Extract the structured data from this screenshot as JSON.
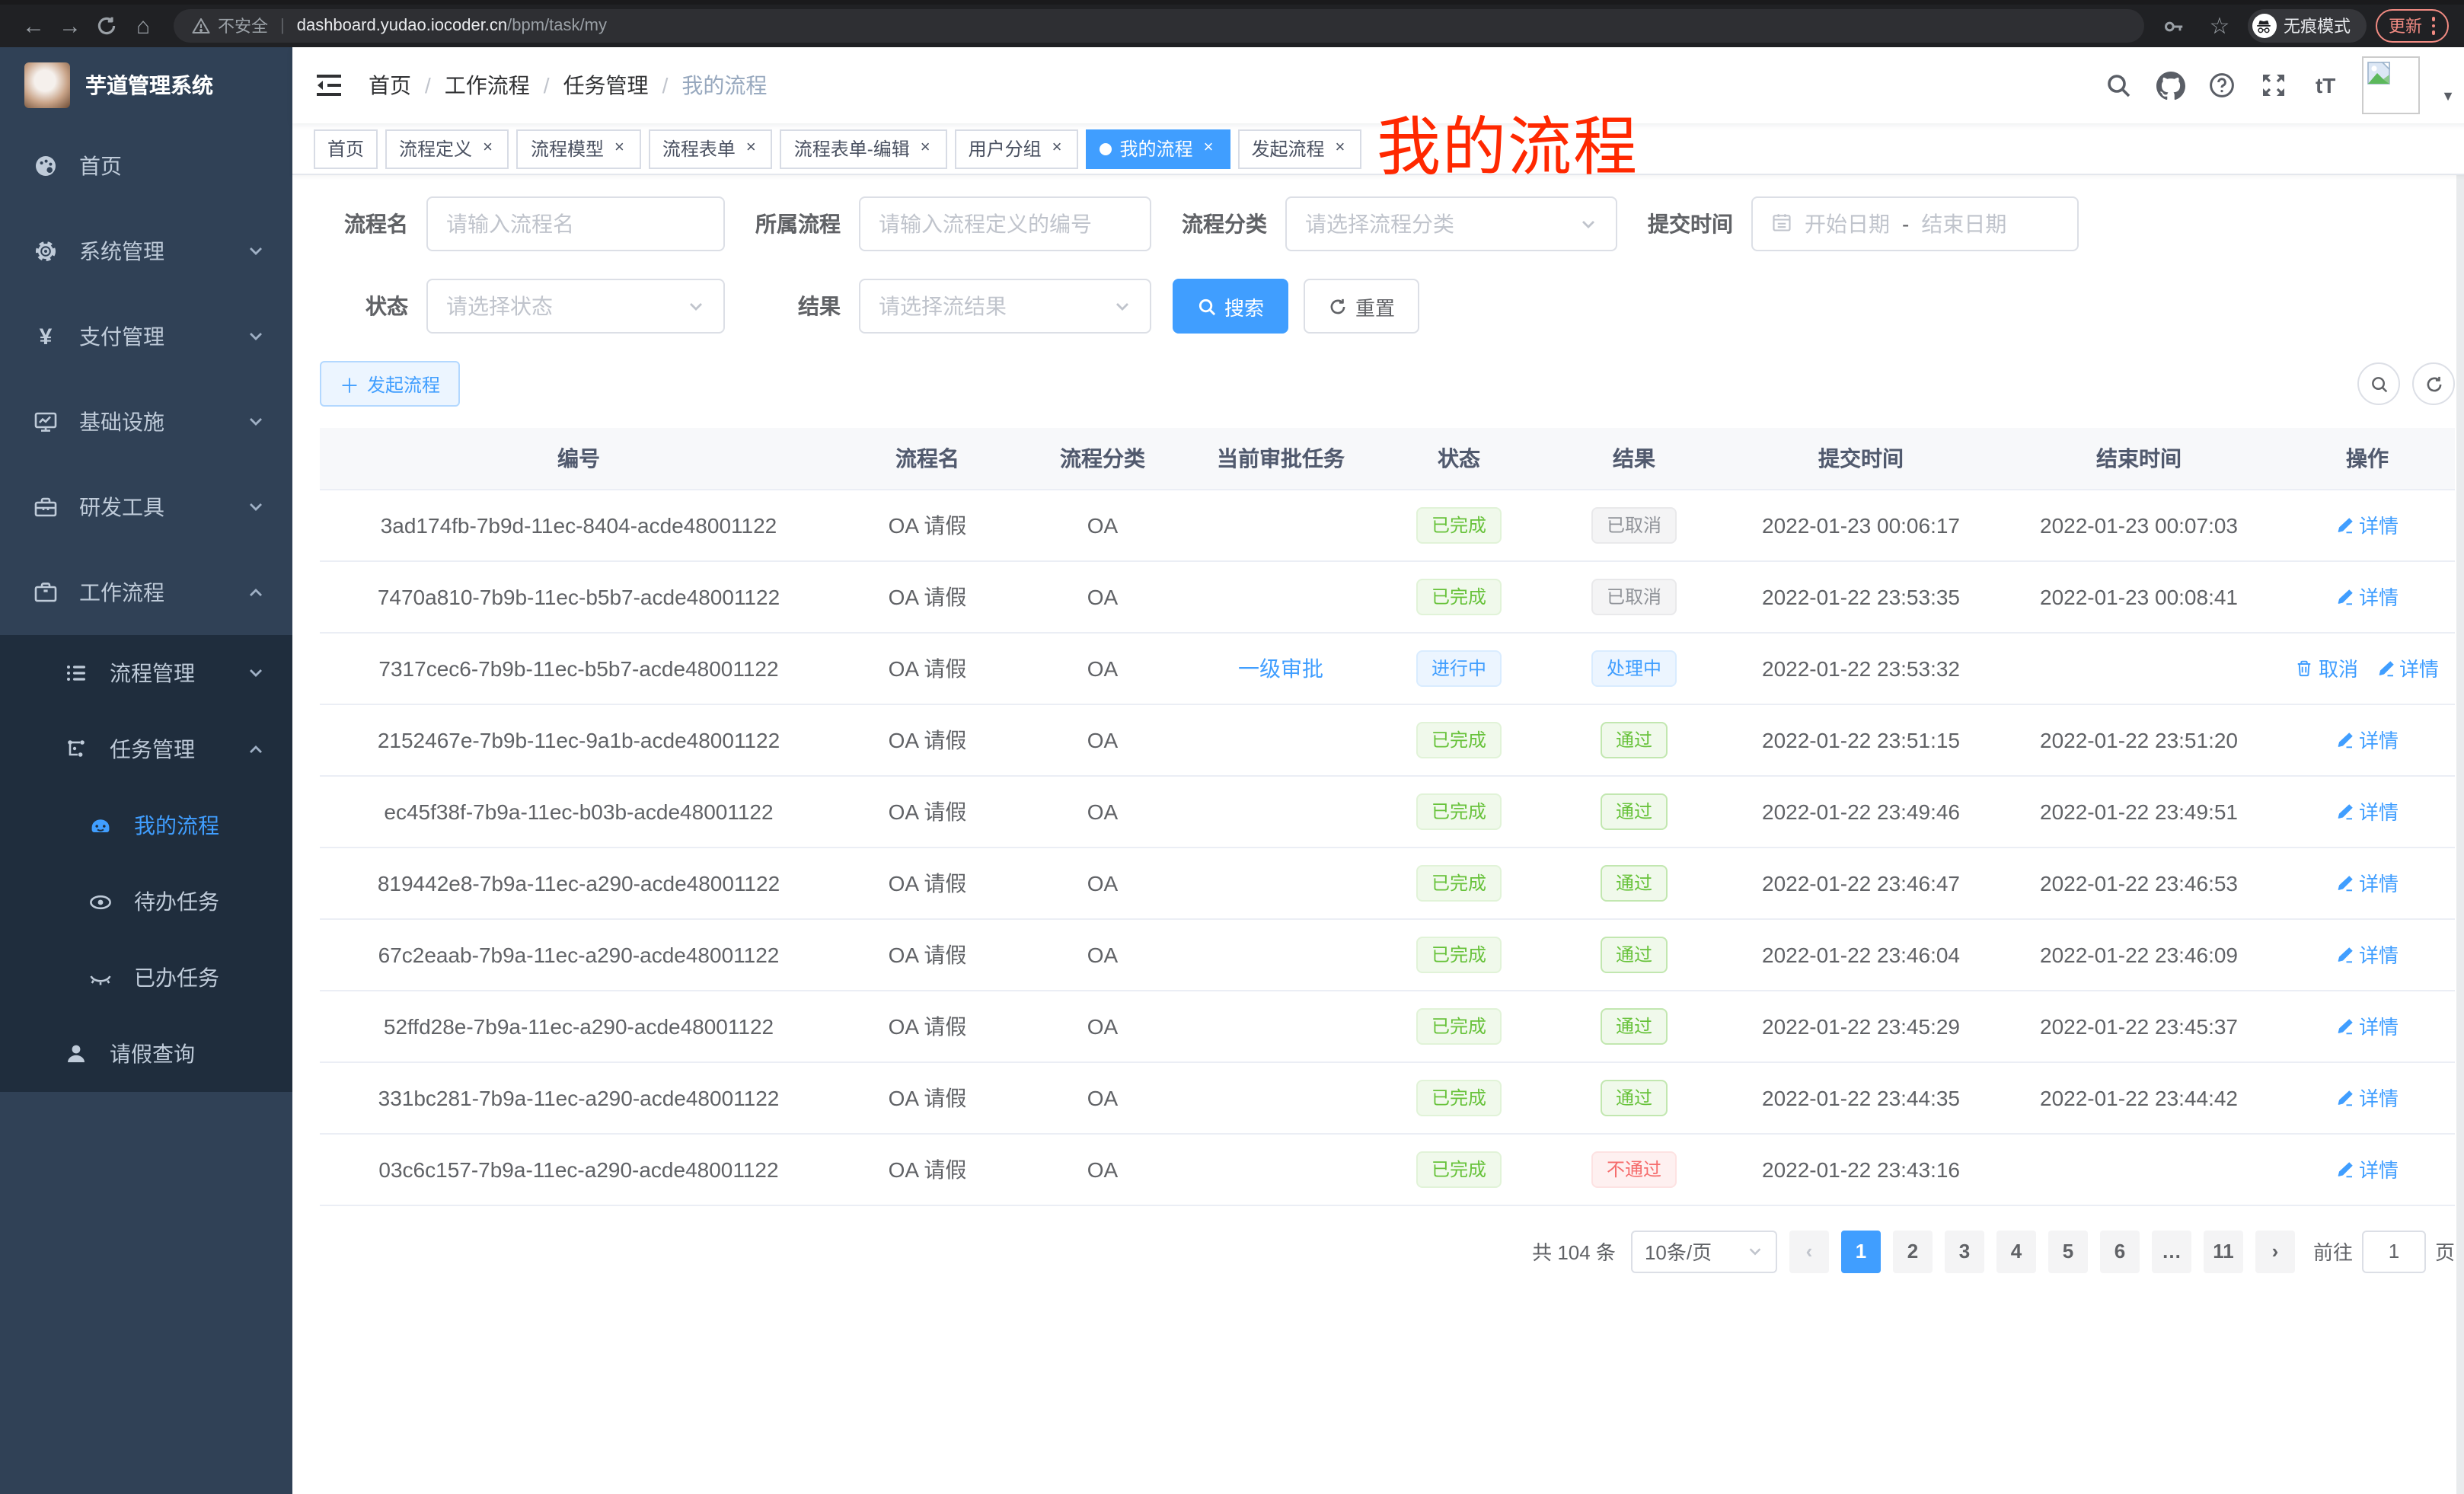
{
  "browser": {
    "security_text": "不安全",
    "url_host": "dashboard.yudao.iocoder.cn",
    "url_path": "/bpm/task/my",
    "incognito_label": "无痕模式",
    "update_label": "更新"
  },
  "sidebar": {
    "app_title": "芋道管理系统",
    "menu": [
      {
        "label": "首页",
        "icon": "dashboard-icon",
        "level": 1,
        "dark": false,
        "active": false,
        "arrow": ""
      },
      {
        "label": "系统管理",
        "icon": "gear-icon",
        "level": 1,
        "dark": false,
        "active": false,
        "arrow": "down"
      },
      {
        "label": "支付管理",
        "icon": "yen-icon",
        "level": 1,
        "dark": false,
        "active": false,
        "arrow": "down"
      },
      {
        "label": "基础设施",
        "icon": "monitor-icon",
        "level": 1,
        "dark": false,
        "active": false,
        "arrow": "down"
      },
      {
        "label": "研发工具",
        "icon": "toolbox-icon",
        "level": 1,
        "dark": false,
        "active": false,
        "arrow": "down"
      },
      {
        "label": "工作流程",
        "icon": "suitcase-icon",
        "level": 1,
        "dark": false,
        "active": false,
        "arrow": "up"
      },
      {
        "label": "流程管理",
        "icon": "list-icon",
        "level": 2,
        "dark": true,
        "active": false,
        "arrow": "down"
      },
      {
        "label": "任务管理",
        "icon": "tree-icon",
        "level": 2,
        "dark": true,
        "active": false,
        "arrow": "up"
      },
      {
        "label": "我的流程",
        "icon": "robot-icon",
        "level": 3,
        "dark": true,
        "active": true,
        "arrow": ""
      },
      {
        "label": "待办任务",
        "icon": "eye-icon",
        "level": 3,
        "dark": true,
        "active": false,
        "arrow": ""
      },
      {
        "label": "已办任务",
        "icon": "eye-closed-icon",
        "level": 3,
        "dark": true,
        "active": false,
        "arrow": ""
      },
      {
        "label": "请假查询",
        "icon": "user-icon",
        "level": 2,
        "dark": true,
        "active": false,
        "arrow": ""
      }
    ]
  },
  "breadcrumb": [
    "首页",
    "工作流程",
    "任务管理",
    "我的流程"
  ],
  "annotation": "我的流程",
  "tabs": [
    {
      "label": "首页",
      "closable": false,
      "active": false
    },
    {
      "label": "流程定义",
      "closable": true,
      "active": false
    },
    {
      "label": "流程模型",
      "closable": true,
      "active": false
    },
    {
      "label": "流程表单",
      "closable": true,
      "active": false
    },
    {
      "label": "流程表单-编辑",
      "closable": true,
      "active": false
    },
    {
      "label": "用户分组",
      "closable": true,
      "active": false
    },
    {
      "label": "我的流程",
      "closable": true,
      "active": true
    },
    {
      "label": "发起流程",
      "closable": true,
      "active": false
    }
  ],
  "filters": {
    "name_label": "流程名",
    "name_placeholder": "请输入流程名",
    "def_label": "所属流程",
    "def_placeholder": "请输入流程定义的编号",
    "category_label": "流程分类",
    "category_placeholder": "请选择流程分类",
    "time_label": "提交时间",
    "time_start_placeholder": "开始日期",
    "time_separator": "-",
    "time_end_placeholder": "结束日期",
    "status_label": "状态",
    "status_placeholder": "请选择状态",
    "result_label": "结果",
    "result_placeholder": "请选择流结果",
    "search_label": "搜索",
    "reset_label": "重置"
  },
  "toolbar": {
    "create_label": "发起流程"
  },
  "table": {
    "headers": [
      "编号",
      "流程名",
      "流程分类",
      "当前审批任务",
      "状态",
      "结果",
      "提交时间",
      "结束时间",
      "操作"
    ],
    "rows": [
      {
        "id": "3ad174fb-7b9d-11ec-8404-acde48001122",
        "name": "OA 请假",
        "category": "OA",
        "task": "",
        "status": "已完成",
        "status_type": "t-success",
        "result": "已取消",
        "result_type": "t-info",
        "submit_time": "2022-01-23 00:06:17",
        "end_time": "2022-01-23 00:07:03",
        "actions": [
          "详情"
        ]
      },
      {
        "id": "7470a810-7b9b-11ec-b5b7-acde48001122",
        "name": "OA 请假",
        "category": "OA",
        "task": "",
        "status": "已完成",
        "status_type": "t-success",
        "result": "已取消",
        "result_type": "t-info",
        "submit_time": "2022-01-22 23:53:35",
        "end_time": "2022-01-23 00:08:41",
        "actions": [
          "详情"
        ]
      },
      {
        "id": "7317cec6-7b9b-11ec-b5b7-acde48001122",
        "name": "OA 请假",
        "category": "OA",
        "task": "一级审批",
        "status": "进行中",
        "status_type": "t-primary",
        "result": "处理中",
        "result_type": "t-primary",
        "submit_time": "2022-01-22 23:53:32",
        "end_time": "",
        "actions": [
          "取消",
          "详情"
        ]
      },
      {
        "id": "2152467e-7b9b-11ec-9a1b-acde48001122",
        "name": "OA 请假",
        "category": "OA",
        "task": "",
        "status": "已完成",
        "status_type": "t-success",
        "result": "通过",
        "result_type": "t-success-b",
        "submit_time": "2022-01-22 23:51:15",
        "end_time": "2022-01-22 23:51:20",
        "actions": [
          "详情"
        ]
      },
      {
        "id": "ec45f38f-7b9a-11ec-b03b-acde48001122",
        "name": "OA 请假",
        "category": "OA",
        "task": "",
        "status": "已完成",
        "status_type": "t-success",
        "result": "通过",
        "result_type": "t-success-b",
        "submit_time": "2022-01-22 23:49:46",
        "end_time": "2022-01-22 23:49:51",
        "actions": [
          "详情"
        ]
      },
      {
        "id": "819442e8-7b9a-11ec-a290-acde48001122",
        "name": "OA 请假",
        "category": "OA",
        "task": "",
        "status": "已完成",
        "status_type": "t-success",
        "result": "通过",
        "result_type": "t-success-b",
        "submit_time": "2022-01-22 23:46:47",
        "end_time": "2022-01-22 23:46:53",
        "actions": [
          "详情"
        ]
      },
      {
        "id": "67c2eaab-7b9a-11ec-a290-acde48001122",
        "name": "OA 请假",
        "category": "OA",
        "task": "",
        "status": "已完成",
        "status_type": "t-success",
        "result": "通过",
        "result_type": "t-success-b",
        "submit_time": "2022-01-22 23:46:04",
        "end_time": "2022-01-22 23:46:09",
        "actions": [
          "详情"
        ]
      },
      {
        "id": "52ffd28e-7b9a-11ec-a290-acde48001122",
        "name": "OA 请假",
        "category": "OA",
        "task": "",
        "status": "已完成",
        "status_type": "t-success",
        "result": "通过",
        "result_type": "t-success-b",
        "submit_time": "2022-01-22 23:45:29",
        "end_time": "2022-01-22 23:45:37",
        "actions": [
          "详情"
        ]
      },
      {
        "id": "331bc281-7b9a-11ec-a290-acde48001122",
        "name": "OA 请假",
        "category": "OA",
        "task": "",
        "status": "已完成",
        "status_type": "t-success",
        "result": "通过",
        "result_type": "t-success-b",
        "submit_time": "2022-01-22 23:44:35",
        "end_time": "2022-01-22 23:44:42",
        "actions": [
          "详情"
        ]
      },
      {
        "id": "03c6c157-7b9a-11ec-a290-acde48001122",
        "name": "OA 请假",
        "category": "OA",
        "task": "",
        "status": "已完成",
        "status_type": "t-success",
        "result": "不通过",
        "result_type": "t-danger",
        "submit_time": "2022-01-22 23:43:16",
        "end_time": "",
        "actions": [
          "详情"
        ]
      }
    ]
  },
  "pagination": {
    "total": "共 104 条",
    "page_size": "10条/页",
    "pages": [
      "1",
      "2",
      "3",
      "4",
      "5",
      "6",
      "…",
      "11"
    ],
    "active_page": "1",
    "goto_label": "前往",
    "goto_value": "1",
    "goto_unit": "页"
  }
}
